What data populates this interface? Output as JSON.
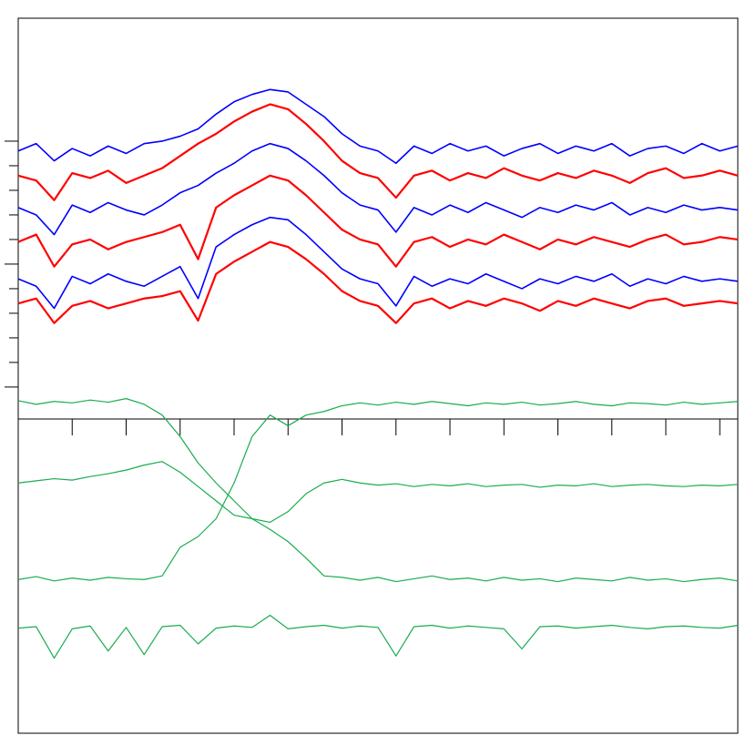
{
  "chart_data": [
    {
      "type": "line",
      "x": [
        0,
        1,
        2,
        3,
        4,
        5,
        6,
        7,
        8,
        9,
        10,
        11,
        12,
        13,
        14,
        15,
        16,
        17,
        18,
        19,
        20,
        21,
        22,
        23,
        24,
        25,
        26,
        27,
        28,
        29,
        30,
        31,
        32,
        33,
        34,
        35,
        36,
        37,
        38,
        39,
        40
      ],
      "xlim": [
        0,
        40
      ],
      "xticks": [
        3,
        6,
        9,
        12,
        15,
        18,
        21,
        24,
        27,
        30,
        33,
        36,
        39
      ],
      "ylim": [
        -1.3,
        15
      ],
      "yticks": [
        0,
        1,
        2,
        3,
        4,
        5,
        6,
        7,
        8,
        9,
        10
      ],
      "series": [
        {
          "color": "#0000ff",
          "values": [
            9.6,
            9.9,
            9.2,
            9.7,
            9.4,
            9.8,
            9.5,
            9.9,
            10.0,
            10.2,
            10.5,
            11.1,
            11.6,
            11.9,
            12.1,
            12.0,
            11.5,
            11.0,
            10.3,
            9.8,
            9.6,
            9.1,
            9.8,
            9.5,
            9.9,
            9.6,
            9.8,
            9.4,
            9.7,
            9.9,
            9.5,
            9.8,
            9.6,
            9.9,
            9.4,
            9.7,
            9.8,
            9.5,
            9.9,
            9.6,
            9.8
          ]
        },
        {
          "color": "#ff0000",
          "values": [
            8.6,
            8.4,
            7.6,
            8.7,
            8.5,
            8.8,
            8.3,
            8.6,
            8.9,
            9.4,
            9.9,
            10.3,
            10.8,
            11.2,
            11.5,
            11.3,
            10.7,
            10.0,
            9.2,
            8.7,
            8.5,
            7.7,
            8.6,
            8.8,
            8.4,
            8.7,
            8.5,
            8.9,
            8.6,
            8.4,
            8.7,
            8.5,
            8.8,
            8.6,
            8.3,
            8.7,
            8.9,
            8.5,
            8.6,
            8.8,
            8.6
          ]
        },
        {
          "color": "#0000ff",
          "values": [
            7.3,
            7.0,
            6.2,
            7.4,
            7.1,
            7.5,
            7.2,
            7.0,
            7.4,
            7.9,
            8.2,
            8.7,
            9.1,
            9.6,
            9.9,
            9.7,
            9.2,
            8.6,
            7.9,
            7.4,
            7.2,
            6.3,
            7.3,
            7.0,
            7.4,
            7.1,
            7.5,
            7.2,
            6.9,
            7.3,
            7.1,
            7.4,
            7.2,
            7.5,
            7.0,
            7.3,
            7.1,
            7.4,
            7.2,
            7.3,
            7.2
          ]
        },
        {
          "color": "#ff0000",
          "values": [
            5.9,
            6.2,
            4.9,
            5.8,
            6.0,
            5.6,
            5.9,
            6.1,
            6.3,
            6.6,
            5.2,
            7.3,
            7.8,
            8.2,
            8.6,
            8.4,
            7.8,
            7.1,
            6.4,
            6.0,
            5.8,
            4.9,
            5.9,
            6.1,
            5.7,
            6.0,
            5.8,
            6.2,
            5.9,
            5.6,
            6.0,
            5.8,
            6.1,
            5.9,
            5.7,
            6.0,
            6.2,
            5.8,
            5.9,
            6.1,
            6.0
          ]
        },
        {
          "color": "#0000ff",
          "values": [
            4.4,
            4.1,
            3.2,
            4.5,
            4.2,
            4.6,
            4.3,
            4.1,
            4.5,
            4.9,
            3.6,
            5.7,
            6.2,
            6.6,
            6.9,
            6.8,
            6.2,
            5.5,
            4.8,
            4.4,
            4.2,
            3.3,
            4.5,
            4.1,
            4.4,
            4.2,
            4.6,
            4.3,
            4.0,
            4.4,
            4.2,
            4.5,
            4.3,
            4.6,
            4.1,
            4.4,
            4.2,
            4.5,
            4.3,
            4.4,
            4.3
          ]
        },
        {
          "color": "#ff0000",
          "values": [
            3.4,
            3.6,
            2.6,
            3.3,
            3.5,
            3.2,
            3.4,
            3.6,
            3.7,
            3.9,
            2.7,
            4.6,
            5.1,
            5.5,
            5.9,
            5.7,
            5.2,
            4.6,
            3.9,
            3.5,
            3.3,
            2.6,
            3.4,
            3.6,
            3.2,
            3.5,
            3.3,
            3.6,
            3.4,
            3.1,
            3.5,
            3.3,
            3.6,
            3.4,
            3.2,
            3.5,
            3.6,
            3.3,
            3.4,
            3.5,
            3.4
          ]
        }
      ]
    },
    {
      "type": "line",
      "x": [
        0,
        1,
        2,
        3,
        4,
        5,
        6,
        7,
        8,
        9,
        10,
        11,
        12,
        13,
        14,
        15,
        16,
        17,
        18,
        19,
        20,
        21,
        22,
        23,
        24,
        25,
        26,
        27,
        28,
        29,
        30,
        31,
        32,
        33,
        34,
        35,
        36,
        37,
        38,
        39,
        40
      ],
      "xlim": [
        0,
        40
      ],
      "ylim": [
        0,
        100
      ],
      "series": [
        {
          "color": "#1aac50",
          "values": [
            46.5,
            46.0,
            46.4,
            46.2,
            46.6,
            46.3,
            46.8,
            46.0,
            44.5,
            41.5,
            37.8,
            35.0,
            32.5,
            30.0,
            28.5,
            26.8,
            24.5,
            22.0,
            21.8,
            21.4,
            21.8,
            21.2,
            21.6,
            22.0,
            21.5,
            21.7,
            21.3,
            21.8,
            21.4,
            21.6,
            21.2,
            21.7,
            21.5,
            21.3,
            21.8,
            21.4,
            21.6,
            21.2,
            21.5,
            21.7,
            21.3
          ]
        },
        {
          "color": "#1aac50",
          "values": [
            21.5,
            21.9,
            21.3,
            21.7,
            21.4,
            21.8,
            21.6,
            21.5,
            22.0,
            26.0,
            27.5,
            30.0,
            35.0,
            41.5,
            44.5,
            43.0,
            44.5,
            45.0,
            45.8,
            46.2,
            45.9,
            46.3,
            46.0,
            46.4,
            46.1,
            45.8,
            46.2,
            46.0,
            46.3,
            45.9,
            46.1,
            46.4,
            46.0,
            45.8,
            46.2,
            46.1,
            45.9,
            46.3,
            46.0,
            46.2,
            46.4
          ]
        },
        {
          "color": "#1aac50",
          "values": [
            35.0,
            35.3,
            35.6,
            35.4,
            35.9,
            36.3,
            36.8,
            37.5,
            38.0,
            36.5,
            34.5,
            32.5,
            30.5,
            30.0,
            29.5,
            31.0,
            33.5,
            35.0,
            35.5,
            35.0,
            34.7,
            34.9,
            34.5,
            34.8,
            34.6,
            34.9,
            34.5,
            34.7,
            34.8,
            34.4,
            34.7,
            34.6,
            34.9,
            34.5,
            34.7,
            34.8,
            34.6,
            34.5,
            34.7,
            34.6,
            34.8
          ]
        },
        {
          "color": "#1aac50",
          "values": [
            14.7,
            14.9,
            10.5,
            14.6,
            15.0,
            11.5,
            14.8,
            11.0,
            14.9,
            15.1,
            12.5,
            14.7,
            15.0,
            14.8,
            16.5,
            14.6,
            14.9,
            15.1,
            14.7,
            15.0,
            14.8,
            10.8,
            14.9,
            15.1,
            14.7,
            15.0,
            14.8,
            14.6,
            11.8,
            14.9,
            15.0,
            14.7,
            14.9,
            15.1,
            14.8,
            14.6,
            14.9,
            15.0,
            14.8,
            14.7,
            15.1
          ]
        }
      ]
    }
  ]
}
